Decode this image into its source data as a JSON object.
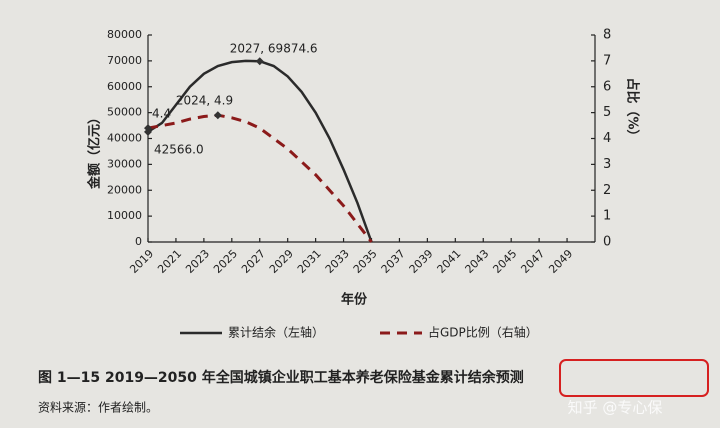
{
  "chart_data": {
    "type": "line",
    "x": [
      2019,
      2020,
      2021,
      2022,
      2023,
      2024,
      2025,
      2026,
      2027,
      2028,
      2029,
      2030,
      2031,
      2032,
      2033,
      2034,
      2035
    ],
    "series": [
      {
        "name": "累计结余（左轴）",
        "color": "#2b2b2b",
        "dash": false,
        "values": [
          42566.0,
          46000,
          53000,
          60000,
          65000,
          68000,
          69500,
          70000,
          69874.6,
          68000,
          64000,
          58000,
          50000,
          40000,
          28000,
          15000,
          0
        ]
      },
      {
        "name": "占GDP比例（右轴）",
        "color": "#8b1a1a",
        "dash": true,
        "axis": "y2",
        "values": [
          4.4,
          4.5,
          4.6,
          4.75,
          4.85,
          4.9,
          4.8,
          4.65,
          4.4,
          4.0,
          3.6,
          3.1,
          2.6,
          2.0,
          1.4,
          0.7,
          0
        ]
      }
    ],
    "annotations": [
      {
        "text": "4.4",
        "x": 2019,
        "y": 4.4,
        "axis": "y2"
      },
      {
        "text": "42566.0",
        "x": 2019,
        "y": 42566.0,
        "axis": "y"
      },
      {
        "text": "2024, 4.9",
        "x": 2024,
        "y": 4.9,
        "axis": "y2"
      },
      {
        "text": "2027, 69874.6",
        "x": 2027,
        "y": 69874.6,
        "axis": "y"
      }
    ],
    "xlabel": "年份",
    "ylabel": "金额（亿元）",
    "y2label": "占比（%）",
    "xlim": [
      2019,
      2051
    ],
    "xticks": [
      2019,
      2021,
      2023,
      2025,
      2027,
      2029,
      2031,
      2033,
      2035,
      2037,
      2039,
      2041,
      2043,
      2045,
      2047,
      2049
    ],
    "ylim": [
      0,
      80000
    ],
    "yticks": [
      0,
      10000,
      20000,
      30000,
      40000,
      50000,
      60000,
      70000,
      80000
    ],
    "y2lim": [
      0,
      8
    ],
    "y2ticks": [
      0,
      1,
      2,
      3,
      4,
      5,
      6,
      7,
      8
    ],
    "grid": false,
    "caption": "图 1—15   2019—2050 年全国城镇企业职工基本养老保险基金累计结余预测",
    "source": "资料来源：作者绘制。"
  },
  "watermark": "知乎 @专心保"
}
